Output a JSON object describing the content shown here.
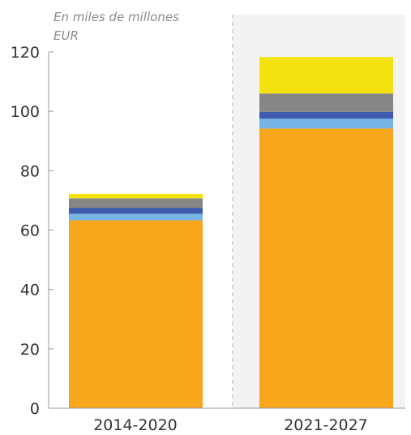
{
  "chart_data": {
    "type": "bar",
    "stacked": true,
    "unit_label": {
      "line1": "En miles de millones",
      "line2": "EUR"
    },
    "categories": [
      "2014-2020",
      "2021-2027"
    ],
    "ylim": [
      0,
      120
    ],
    "yticks": [
      0,
      20,
      40,
      60,
      80,
      100,
      120
    ],
    "series": [
      {
        "color": "#F8A61C",
        "values": [
          63.3,
          94.2
        ]
      },
      {
        "color": "#76B5E6",
        "values": [
          2.2,
          3.3
        ]
      },
      {
        "color": "#3E5BAE",
        "values": [
          2.0,
          2.3
        ]
      },
      {
        "color": "#868686",
        "values": [
          3.2,
          6.2
        ]
      },
      {
        "color": "#F3E210",
        "values": [
          1.5,
          12.3
        ]
      }
    ],
    "highlight_category": "2021-2027",
    "highlight_background": "#F3F3F3",
    "legend": "none",
    "grid": false
  }
}
